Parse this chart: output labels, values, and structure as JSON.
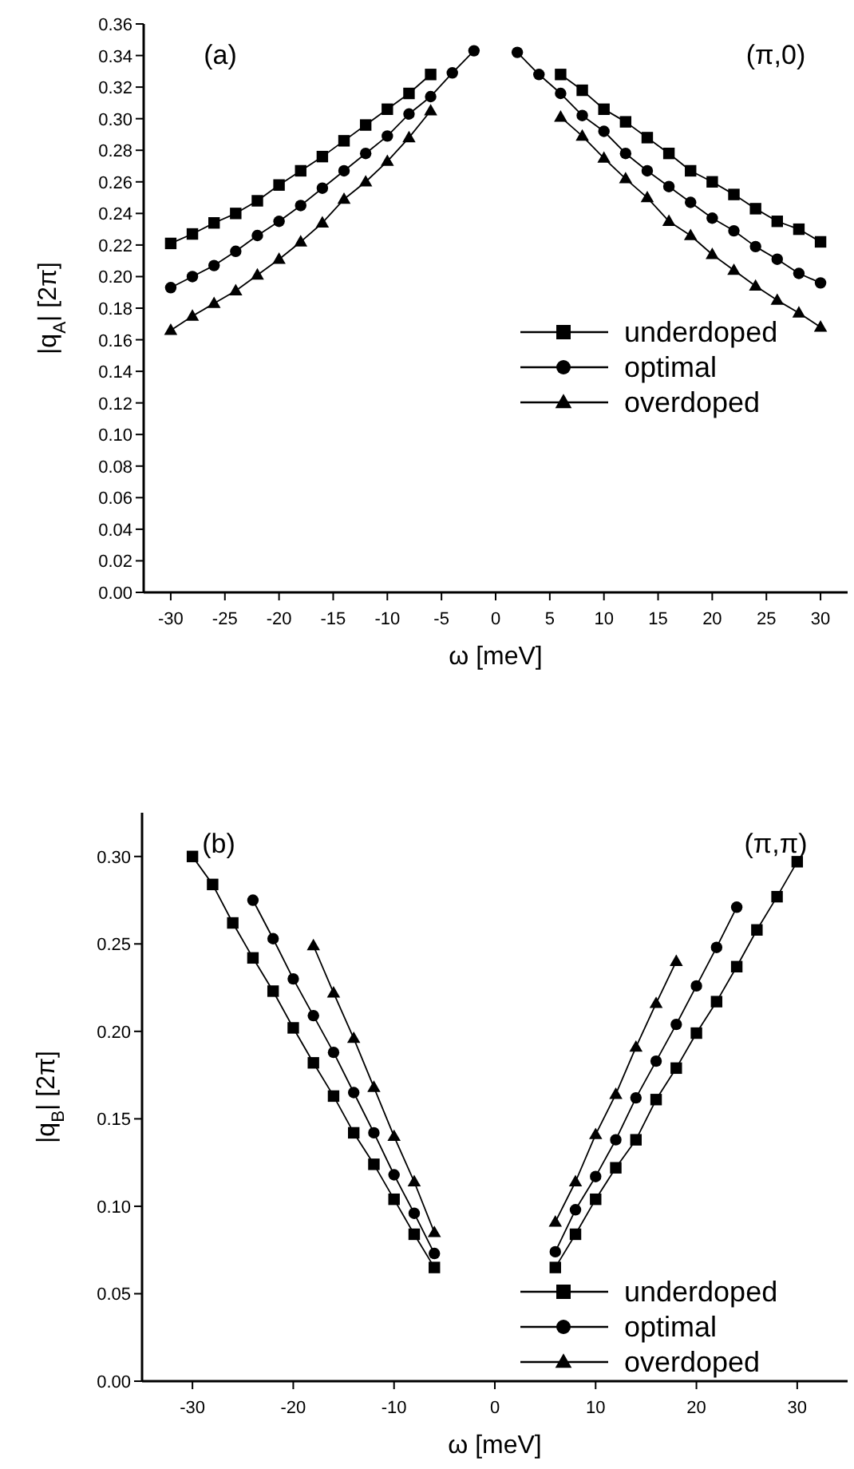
{
  "chart_data": [
    {
      "type": "line",
      "xlabel": "ω [meV]",
      "ylabel": "|q$_{A}$| [2π]",
      "annotations": [
        "(a)",
        "(π,0)"
      ],
      "xlim": [
        -32.5,
        32.5
      ],
      "xticks": [
        -30,
        -25,
        -20,
        -15,
        -10,
        -5,
        0,
        5,
        10,
        15,
        20,
        25,
        30
      ],
      "ylim": [
        0,
        0.36
      ],
      "yticks": [
        {
          "value": 0,
          "label": "0.00"
        },
        {
          "value": 0.02,
          "label": "0.02"
        },
        {
          "value": 0.04,
          "label": "0.04"
        },
        {
          "value": 0.06,
          "label": "0.06"
        },
        {
          "value": 0.08,
          "label": "0.08"
        },
        {
          "value": 0.1,
          "label": "0.10"
        },
        {
          "value": 0.12,
          "label": "0.12"
        },
        {
          "value": 0.14,
          "label": "0.14"
        },
        {
          "value": 0.16,
          "label": "0.16"
        },
        {
          "value": 0.18,
          "label": "0.18"
        },
        {
          "value": 0.2,
          "label": "0.20"
        },
        {
          "value": 0.22,
          "label": "0.22"
        },
        {
          "value": 0.24,
          "label": "0.24"
        },
        {
          "value": 0.26,
          "label": "0.26"
        },
        {
          "value": 0.28,
          "label": "0.28"
        },
        {
          "value": 0.3,
          "label": "0.30"
        },
        {
          "value": 0.32,
          "label": "0.32"
        },
        {
          "value": 0.34,
          "label": "0.34"
        },
        {
          "value": 0.36,
          "label": "0.36"
        }
      ],
      "legend": "bottom right",
      "grid": false,
      "line_style": "solid",
      "series": [
        {
          "name": "underdoped",
          "color": "#000000",
          "marker": "square",
          "x": [
            -30,
            -28,
            -26,
            -24,
            -22,
            -20,
            -18,
            -16,
            -14,
            -12,
            -10,
            -8,
            -6,
            0,
            6,
            8,
            10,
            12,
            14,
            16,
            18,
            20,
            22,
            24,
            26,
            28,
            30
          ],
          "values": [
            0.221,
            0.227,
            0.234,
            0.24,
            0.248,
            0.258,
            0.267,
            0.276,
            0.286,
            0.296,
            0.306,
            0.316,
            0.328,
            null,
            0.328,
            0.318,
            0.306,
            0.298,
            0.288,
            0.278,
            0.267,
            0.26,
            0.252,
            0.243,
            0.235,
            0.23,
            0.222
          ]
        },
        {
          "name": "optimal",
          "color": "#000000",
          "marker": "circle",
          "x": [
            -30,
            -28,
            -26,
            -24,
            -22,
            -20,
            -18,
            -16,
            -14,
            -12,
            -10,
            -8,
            -6,
            -4,
            -2,
            0,
            2,
            4,
            6,
            8,
            10,
            12,
            14,
            16,
            18,
            20,
            22,
            24,
            26,
            28,
            30
          ],
          "values": [
            0.193,
            0.2,
            0.207,
            0.216,
            0.226,
            0.235,
            0.245,
            0.256,
            0.267,
            0.278,
            0.289,
            0.303,
            0.314,
            0.329,
            0.343,
            null,
            0.342,
            0.328,
            0.316,
            0.302,
            0.292,
            0.278,
            0.267,
            0.257,
            0.247,
            0.237,
            0.229,
            0.219,
            0.211,
            0.202,
            0.196
          ]
        },
        {
          "name": "overdoped",
          "color": "#000000",
          "marker": "triangle",
          "x": [
            -30,
            -28,
            -26,
            -24,
            -22,
            -20,
            -18,
            -16,
            -14,
            -12,
            -10,
            -8,
            -6,
            0,
            6,
            8,
            10,
            12,
            14,
            16,
            18,
            20,
            22,
            24,
            26,
            28,
            30
          ],
          "values": [
            0.166,
            0.175,
            0.183,
            0.191,
            0.201,
            0.211,
            0.222,
            0.234,
            0.249,
            0.26,
            0.273,
            0.288,
            0.305,
            null,
            0.301,
            0.289,
            0.275,
            0.262,
            0.25,
            0.235,
            0.226,
            0.214,
            0.204,
            0.194,
            0.185,
            0.177,
            0.168
          ]
        }
      ]
    },
    {
      "type": "line",
      "xlabel": "ω [meV]",
      "ylabel": "|q$_{B}$| [2π]",
      "annotations": [
        "(b)",
        "(π,π)"
      ],
      "xlim": [
        -35,
        35
      ],
      "xticks": [
        -30,
        -20,
        -10,
        0,
        10,
        20,
        30
      ],
      "ylim": [
        0,
        0.325
      ],
      "yticks": [
        {
          "value": 0,
          "label": "0.00"
        },
        {
          "value": 0.05,
          "label": "0.05"
        },
        {
          "value": 0.1,
          "label": "0.10"
        },
        {
          "value": 0.15,
          "label": "0.15"
        },
        {
          "value": 0.2,
          "label": "0.20"
        },
        {
          "value": 0.25,
          "label": "0.25"
        },
        {
          "value": 0.3,
          "label": "0.30"
        }
      ],
      "legend": "bottom right",
      "grid": false,
      "line_style": "solid",
      "series": [
        {
          "name": "underdoped",
          "color": "#000000",
          "marker": "square",
          "x": [
            -30,
            -28,
            -26,
            -24,
            -22,
            -20,
            -18,
            -16,
            -14,
            -12,
            -10,
            -8,
            -6,
            0,
            6,
            8,
            10,
            12,
            14,
            16,
            18,
            20,
            22,
            24,
            26,
            28,
            30
          ],
          "values": [
            0.3,
            0.284,
            0.262,
            0.242,
            0.223,
            0.202,
            0.182,
            0.163,
            0.142,
            0.124,
            0.104,
            0.084,
            0.065,
            null,
            0.065,
            0.084,
            0.104,
            0.122,
            0.138,
            0.161,
            0.179,
            0.199,
            0.217,
            0.237,
            0.258,
            0.277,
            0.297
          ]
        },
        {
          "name": "optimal",
          "color": "#000000",
          "marker": "circle",
          "x": [
            -24,
            -22,
            -20,
            -18,
            -16,
            -14,
            -12,
            -10,
            -8,
            -6,
            0,
            6,
            8,
            10,
            12,
            14,
            16,
            18,
            20,
            22,
            24
          ],
          "values": [
            0.275,
            0.253,
            0.23,
            0.209,
            0.188,
            0.165,
            0.142,
            0.118,
            0.096,
            0.073,
            null,
            0.074,
            0.098,
            0.117,
            0.138,
            0.162,
            0.183,
            0.204,
            0.226,
            0.248,
            0.271
          ]
        },
        {
          "name": "overdoped",
          "color": "#000000",
          "marker": "triangle",
          "x": [
            -18,
            -16,
            -14,
            -12,
            -10,
            -8,
            -6,
            0,
            6,
            8,
            10,
            12,
            14,
            16,
            18
          ],
          "values": [
            0.249,
            0.222,
            0.196,
            0.168,
            0.14,
            0.114,
            0.085,
            null,
            0.091,
            0.114,
            0.141,
            0.164,
            0.191,
            0.216,
            0.24
          ]
        }
      ]
    }
  ]
}
